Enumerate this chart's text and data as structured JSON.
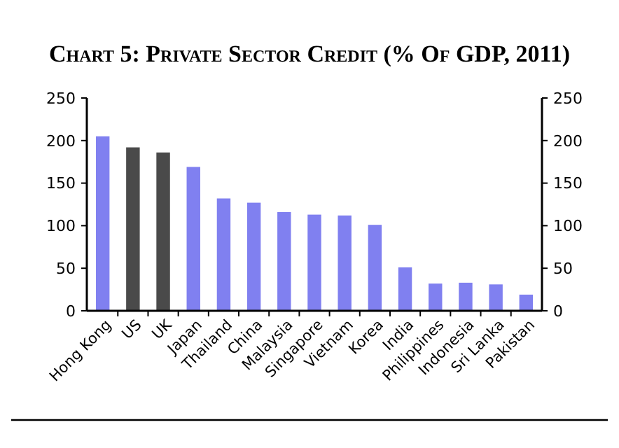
{
  "chart_data": {
    "type": "bar",
    "title": "Chart 5: Private Sector Credit (% Of GDP, 2011)",
    "categories": [
      "Hong Kong",
      "US",
      "UK",
      "Japan",
      "Thailand",
      "China",
      "Malaysia",
      "Singapore",
      "Vietnam",
      "Korea",
      "India",
      "Philippines",
      "Indonesia",
      "Sri Lanka",
      "Pakistan"
    ],
    "values": [
      205,
      192,
      186,
      169,
      132,
      127,
      116,
      113,
      112,
      101,
      51,
      32,
      33,
      31,
      19
    ],
    "colors": [
      "#8080f0",
      "#4a4a4a",
      "#4a4a4a",
      "#8080f0",
      "#8080f0",
      "#8080f0",
      "#8080f0",
      "#8080f0",
      "#8080f0",
      "#8080f0",
      "#8080f0",
      "#8080f0",
      "#8080f0",
      "#8080f0",
      "#8080f0"
    ],
    "ylim": [
      0,
      250
    ],
    "yticks": [
      0,
      50,
      100,
      150,
      200,
      250
    ],
    "y2lim": [
      0,
      250
    ],
    "y2ticks": [
      0,
      50,
      100,
      150,
      200,
      250
    ],
    "grid": false
  }
}
